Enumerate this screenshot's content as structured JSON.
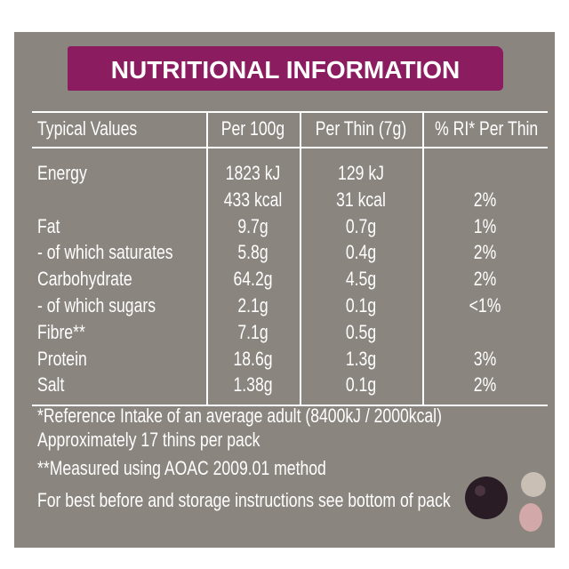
{
  "title": "NUTRITIONAL INFORMATION",
  "table": {
    "headers": [
      "Typical Values",
      "Per 100g",
      "Per Thin (7g)",
      "% RI* Per Thin"
    ],
    "rows": [
      [
        "Energy",
        "1823 kJ",
        "129 kJ",
        null
      ],
      [
        null,
        "433 kcal",
        "31 kcal",
        "2%"
      ],
      [
        "Fat",
        "9.7g",
        "0.7g",
        "1%"
      ],
      [
        "- of which saturates",
        "5.8g",
        "0.4g",
        "2%"
      ],
      [
        "Carbohydrate",
        "64.2g",
        "4.5g",
        "2%"
      ],
      [
        "- of which sugars",
        "2.1g",
        "0.1g",
        "<1%"
      ],
      [
        "Fibre**",
        "7.1g",
        "0.5g",
        null
      ],
      [
        "Protein",
        "18.6g",
        "1.3g",
        "3%"
      ],
      [
        "Salt",
        "1.38g",
        "0.1g",
        "2%"
      ]
    ]
  },
  "footnotes": [
    "*Reference Intake of an average adult (8400kJ / 2000kcal)",
    "Approximately 17 thins per pack",
    "**Measured using AOAC 2009.01 method",
    "For best before and storage instructions see bottom of pack"
  ]
}
